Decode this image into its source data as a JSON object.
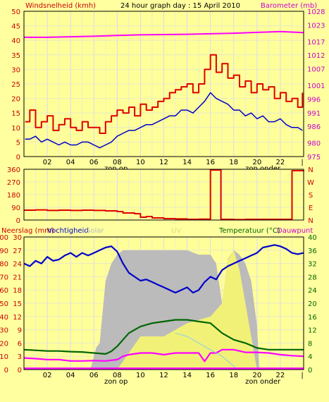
{
  "colors": {
    "background": "#ffffa0",
    "plot_bg": "#ffff99",
    "grid": "#e0e0ff",
    "frame": "#000000",
    "left_label": "#cc0000",
    "right_label": "#cc00cc",
    "temp_label": "#006600",
    "blue": "#0000cc",
    "red": "#dd0000",
    "magenta": "#ff00ff",
    "green": "#006600",
    "solar": "#bbbbbb",
    "uv": "#ffff66",
    "lightblue": "#88ccee"
  },
  "header": {
    "left": "Windsnelheid (kmh)",
    "title": "24 hour graph day : 15 April 2010",
    "right": "Barometer (mb)"
  },
  "panel3_header": {
    "rain": "Neerslag (mm)",
    "humidity": "Vochtigheid",
    "solar": "Solar",
    "uv": "UV",
    "temperature": "Temperatuur (°C)",
    "dewpoint": "Dauwpunt"
  },
  "x_ticks": [
    "02",
    "04",
    "06",
    "08",
    "10",
    "12",
    "14",
    "16",
    "18",
    "20",
    "22"
  ],
  "end_tick": "|",
  "sunrise_label": "zon op",
  "sunset_label": "zon onder",
  "chart_data": [
    {
      "type": "line",
      "name": "wind-barometer",
      "xlim": [
        0,
        24
      ],
      "y_left": {
        "ticks": [
          "0",
          "5",
          "10",
          "15",
          "20",
          "25",
          "30",
          "35",
          "40",
          "45",
          "50"
        ],
        "ylim": [
          0,
          50
        ]
      },
      "y_right": {
        "ticks": [
          "975",
          "980",
          "986",
          "991",
          "996",
          "1001",
          "1007",
          "1012",
          "1017",
          "1023",
          "1028"
        ],
        "ylim": [
          975,
          1028
        ]
      },
      "series": [
        {
          "key": "gust",
          "color": "red",
          "axis": "left",
          "x": [
            0.1,
            0.5,
            1,
            1.5,
            2,
            2.5,
            3,
            3.5,
            4,
            4.5,
            5,
            5.5,
            6,
            6.5,
            7,
            7.5,
            8,
            8.5,
            9,
            9.5,
            10,
            10.5,
            11,
            11.5,
            12,
            12.5,
            13,
            13.5,
            14,
            14.5,
            15,
            15.5,
            16,
            16.5,
            17,
            17.5,
            18,
            18.5,
            19,
            19.5,
            20,
            20.5,
            21,
            21.5,
            22,
            22.5,
            23,
            23.5,
            23.9
          ],
          "values": [
            12,
            16,
            10,
            12,
            14,
            9,
            11,
            13,
            10,
            9,
            12,
            10,
            10,
            8,
            12,
            14,
            16,
            15,
            17,
            14,
            18,
            16,
            17,
            19,
            20,
            22,
            23,
            24,
            25,
            22,
            25,
            30,
            35,
            29,
            32,
            27,
            28,
            24,
            26,
            22,
            25,
            23,
            24,
            20,
            22,
            19,
            20,
            17,
            22
          ]
        },
        {
          "key": "average",
          "color": "blue",
          "axis": "left",
          "x": [
            0.1,
            0.5,
            1,
            1.5,
            2,
            2.5,
            3,
            3.5,
            4,
            4.5,
            5,
            5.5,
            6,
            6.5,
            7,
            7.5,
            8,
            8.5,
            9,
            9.5,
            10,
            10.5,
            11,
            11.5,
            12,
            12.5,
            13,
            13.5,
            14,
            14.5,
            15,
            15.5,
            16,
            16.5,
            17,
            17.5,
            18,
            18.5,
            19,
            19.5,
            20,
            20.5,
            21,
            21.5,
            22,
            22.5,
            23,
            23.5,
            23.9
          ],
          "values": [
            6,
            6,
            7,
            5,
            6,
            5,
            4,
            5,
            4,
            4,
            5,
            5,
            4,
            3,
            4,
            5,
            7,
            8,
            9,
            9,
            10,
            11,
            11,
            12,
            13,
            14,
            14,
            16,
            16,
            15,
            17,
            19,
            22,
            20,
            19,
            18,
            16,
            16,
            14,
            15,
            13,
            14,
            12,
            12,
            13,
            11,
            10,
            10,
            9
          ]
        },
        {
          "key": "pressure",
          "color": "magenta",
          "axis": "right",
          "x": [
            0,
            2,
            4,
            6,
            8,
            10,
            12,
            14,
            16,
            18,
            20,
            22,
            23,
            24
          ],
          "values": [
            1018.5,
            1018.5,
            1018.7,
            1018.9,
            1019.2,
            1019.4,
            1019.5,
            1019.6,
            1019.8,
            1020.0,
            1020.3,
            1020.6,
            1020.4,
            1020.2
          ]
        }
      ]
    },
    {
      "type": "line",
      "name": "wind-direction",
      "xlim": [
        0,
        24
      ],
      "y_left": {
        "ticks": [
          "0",
          "90",
          "180",
          "270",
          "360"
        ],
        "ylim": [
          0,
          360
        ]
      },
      "y_right": {
        "ticks": [
          "N",
          "W",
          "S",
          "E",
          "N"
        ]
      },
      "series": [
        {
          "key": "direction",
          "color": "red",
          "x": [
            0,
            1,
            2,
            3,
            4,
            5,
            6,
            7,
            8,
            8.5,
            9,
            9.5,
            10,
            10.5,
            11,
            12,
            13,
            14,
            15,
            15.9,
            16,
            16.8,
            16.9,
            17,
            18,
            19,
            20,
            21,
            22,
            22.9,
            23,
            24
          ],
          "values": [
            70,
            72,
            68,
            70,
            68,
            70,
            68,
            65,
            60,
            50,
            50,
            45,
            20,
            25,
            15,
            10,
            8,
            5,
            6,
            5,
            355,
            355,
            5,
            5,
            3,
            5,
            5,
            5,
            5,
            5,
            350,
            355
          ]
        }
      ]
    },
    {
      "type": "area",
      "name": "humidity-temperature",
      "xlim": [
        0,
        24
      ],
      "y_left": {
        "ticks": [
          "0",
          "10",
          "20",
          "30",
          "40",
          "50",
          "60",
          "70",
          "80",
          "90",
          "100"
        ],
        "ylim": [
          0,
          100
        ]
      },
      "y_left2": {
        "ticks": [
          "0",
          "3",
          "6",
          "9",
          "12",
          "15",
          "18",
          "21",
          "24",
          "27",
          "30"
        ],
        "ylim": [
          0,
          30
        ]
      },
      "y_right": {
        "ticks": [
          "0",
          "4",
          "8",
          "12",
          "16",
          "20",
          "24",
          "28",
          "32",
          "36",
          "40"
        ],
        "ylim": [
          0,
          40
        ]
      },
      "series": [
        {
          "key": "solar",
          "color": "solar",
          "axis": "left2",
          "x": [
            0,
            5.6,
            5.7,
            6,
            6.2,
            6.5,
            7,
            7.5,
            8,
            8.5,
            9,
            10,
            11,
            12,
            13,
            14,
            15,
            16,
            16.5,
            17,
            17.5,
            18,
            18.5,
            19,
            19.5,
            20,
            20.2,
            24
          ],
          "values": [
            0,
            0,
            0,
            3,
            5,
            6,
            20,
            24,
            26,
            27,
            27,
            27,
            27,
            27,
            27,
            27,
            26,
            26,
            24,
            15,
            25,
            27,
            26,
            24,
            20,
            10,
            0,
            0
          ]
        },
        {
          "key": "uv",
          "color": "uv",
          "axis": "right",
          "x": [
            8,
            10,
            12,
            14,
            16,
            17,
            17.5,
            18,
            18.5,
            19,
            20
          ],
          "values": [
            0,
            10,
            10,
            14,
            16,
            20,
            33,
            36,
            30,
            20,
            0
          ]
        },
        {
          "key": "humidity",
          "color": "blue",
          "axis": "left",
          "x": [
            0,
            0.5,
            1,
            1.5,
            2,
            2.5,
            3,
            3.5,
            4,
            4.5,
            5,
            5.5,
            6,
            6.5,
            7,
            7.5,
            8,
            8.5,
            9,
            9.5,
            10,
            10.5,
            11,
            11.5,
            12,
            12.5,
            13,
            13.5,
            14,
            14.5,
            15,
            15.5,
            16,
            16.5,
            17,
            17.5,
            18,
            18.5,
            19,
            19.5,
            20,
            20.5,
            21,
            21.5,
            22,
            22.5,
            23,
            23.5,
            24
          ],
          "values": [
            80,
            78,
            82,
            80,
            85,
            82,
            83,
            86,
            88,
            85,
            88,
            86,
            88,
            90,
            92,
            93,
            89,
            80,
            73,
            70,
            67,
            68,
            66,
            64,
            62,
            60,
            58,
            60,
            62,
            58,
            60,
            66,
            70,
            68,
            75,
            78,
            80,
            82,
            84,
            86,
            88,
            92,
            93,
            94,
            93,
            91,
            88,
            87,
            88
          ]
        },
        {
          "key": "temperature",
          "color": "green",
          "axis": "right",
          "x": [
            0,
            1,
            2,
            3,
            4,
            5,
            6,
            7,
            7.5,
            8,
            8.5,
            9,
            10,
            11,
            12,
            13,
            14,
            15,
            16,
            17,
            18,
            19,
            20,
            21,
            22,
            23,
            24
          ],
          "values": [
            6,
            5.8,
            5.6,
            5.6,
            5.4,
            5.3,
            5,
            4.7,
            5.5,
            7,
            9,
            11,
            13,
            14,
            14.5,
            15,
            15,
            14.5,
            14,
            11,
            9,
            8,
            6.5,
            6,
            6,
            6,
            6
          ]
        },
        {
          "key": "dewpoint",
          "color": "magenta",
          "axis": "right",
          "x": [
            0,
            1,
            2,
            3,
            4,
            5,
            6,
            7,
            8,
            8.5,
            9,
            10,
            11,
            12,
            13,
            14,
            15,
            15.5,
            16,
            16.5,
            17,
            18,
            19,
            20,
            21,
            22,
            23,
            24
          ],
          "values": [
            3.5,
            3.3,
            3,
            3,
            2.6,
            2.6,
            2.7,
            2.6,
            3,
            4,
            4.5,
            5,
            5,
            4.5,
            5,
            5,
            5,
            2.5,
            5,
            5,
            6,
            6,
            5.2,
            5.2,
            5,
            4.5,
            4.2,
            4
          ]
        },
        {
          "key": "solar-envelope",
          "color": "lightblue",
          "axis": "right",
          "x": [
            13,
            14,
            15,
            16,
            17,
            18,
            18.3
          ],
          "values": [
            11,
            10,
            8,
            6,
            4,
            1,
            0
          ]
        },
        {
          "key": "rain",
          "color": "magenta",
          "axis": "right",
          "x": [
            0,
            24
          ],
          "values": [
            0.3,
            0.3
          ]
        }
      ]
    }
  ]
}
